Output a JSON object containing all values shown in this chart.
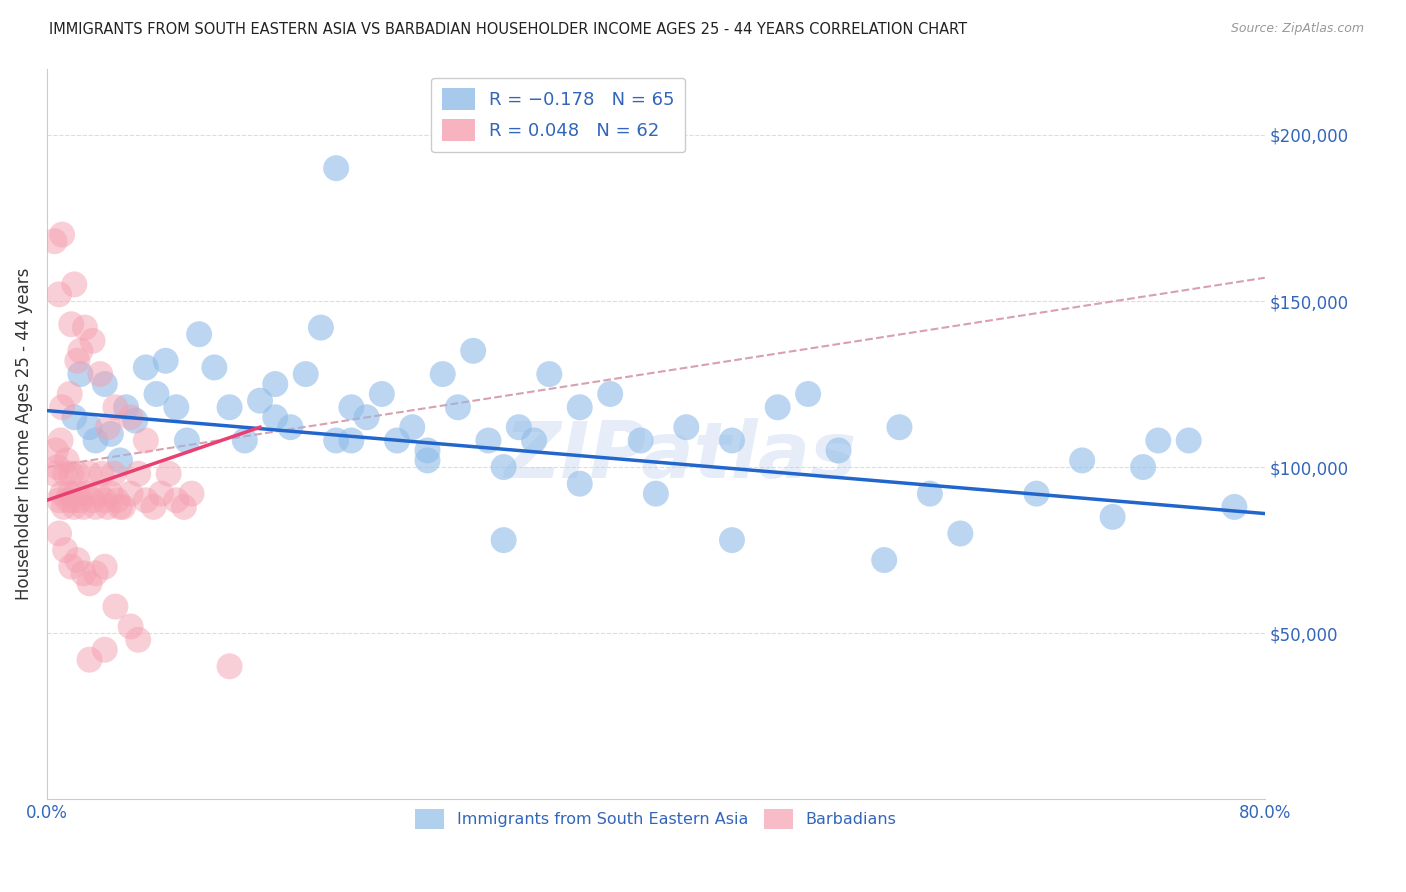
{
  "title": "IMMIGRANTS FROM SOUTH EASTERN ASIA VS BARBADIAN HOUSEHOLDER INCOME AGES 25 - 44 YEARS CORRELATION CHART",
  "source": "Source: ZipAtlas.com",
  "ylabel": "Householder Income Ages 25 - 44 years",
  "xlim": [
    0.0,
    0.8
  ],
  "ylim": [
    0,
    220000
  ],
  "yticks": [
    50000,
    100000,
    150000,
    200000
  ],
  "ytick_labels": [
    "$50,000",
    "$100,000",
    "$150,000",
    "$200,000"
  ],
  "xticks": [
    0.0,
    0.2,
    0.4,
    0.6,
    0.8
  ],
  "xtick_labels": [
    "0.0%",
    "",
    "",
    "",
    "80.0%"
  ],
  "blue_color": "#90bce8",
  "pink_color": "#f5a0b0",
  "blue_line_color": "#2266cc",
  "pink_line_color": "#e84070",
  "dashed_color": "#d8a0b0",
  "background_color": "#ffffff",
  "grid_color": "#dddddd",
  "title_color": "#222222",
  "axis_label_color": "#333333",
  "tick_color": "#3366bb",
  "watermark": "ZIPatlas",
  "blue_scatter_x": [
    0.018,
    0.022,
    0.028,
    0.032,
    0.038,
    0.042,
    0.048,
    0.052,
    0.058,
    0.065,
    0.072,
    0.078,
    0.085,
    0.092,
    0.1,
    0.11,
    0.12,
    0.13,
    0.14,
    0.15,
    0.16,
    0.17,
    0.18,
    0.19,
    0.2,
    0.21,
    0.22,
    0.23,
    0.24,
    0.25,
    0.27,
    0.29,
    0.31,
    0.33,
    0.35,
    0.37,
    0.39,
    0.42,
    0.45,
    0.48,
    0.52,
    0.56,
    0.6,
    0.65,
    0.72,
    0.75,
    0.78,
    0.19,
    0.26,
    0.3,
    0.28,
    0.32,
    0.5,
    0.58,
    0.68,
    0.73,
    0.7,
    0.15,
    0.2,
    0.25,
    0.3,
    0.35,
    0.4,
    0.45,
    0.55
  ],
  "blue_scatter_y": [
    115000,
    128000,
    112000,
    108000,
    125000,
    110000,
    102000,
    118000,
    114000,
    130000,
    122000,
    132000,
    118000,
    108000,
    140000,
    130000,
    118000,
    108000,
    120000,
    125000,
    112000,
    128000,
    142000,
    108000,
    118000,
    115000,
    122000,
    108000,
    112000,
    102000,
    118000,
    108000,
    112000,
    128000,
    118000,
    122000,
    108000,
    112000,
    108000,
    118000,
    105000,
    112000,
    80000,
    92000,
    100000,
    108000,
    88000,
    190000,
    128000,
    78000,
    135000,
    108000,
    122000,
    92000,
    102000,
    108000,
    85000,
    115000,
    108000,
    105000,
    100000,
    95000,
    92000,
    78000,
    72000
  ],
  "pink_scatter_x": [
    0.005,
    0.006,
    0.007,
    0.008,
    0.009,
    0.01,
    0.011,
    0.012,
    0.013,
    0.014,
    0.015,
    0.016,
    0.017,
    0.018,
    0.019,
    0.02,
    0.022,
    0.024,
    0.026,
    0.028,
    0.03,
    0.032,
    0.034,
    0.036,
    0.038,
    0.04,
    0.042,
    0.044,
    0.046,
    0.048,
    0.05,
    0.055,
    0.06,
    0.065,
    0.07,
    0.075,
    0.08,
    0.085,
    0.09,
    0.095,
    0.01,
    0.015,
    0.02,
    0.025,
    0.03,
    0.035,
    0.04,
    0.045,
    0.055,
    0.065,
    0.008,
    0.012,
    0.016,
    0.02,
    0.024,
    0.028,
    0.032,
    0.038,
    0.045,
    0.055,
    0.01,
    0.018
  ],
  "pink_scatter_y": [
    98000,
    105000,
    100000,
    90000,
    108000,
    92000,
    88000,
    98000,
    102000,
    90000,
    92000,
    98000,
    90000,
    88000,
    92000,
    98000,
    90000,
    88000,
    92000,
    98000,
    90000,
    88000,
    92000,
    98000,
    90000,
    88000,
    92000,
    98000,
    90000,
    88000,
    88000,
    92000,
    98000,
    90000,
    88000,
    92000,
    98000,
    90000,
    88000,
    92000,
    118000,
    122000,
    132000,
    142000,
    138000,
    128000,
    112000,
    118000,
    115000,
    108000,
    80000,
    75000,
    70000,
    72000,
    68000,
    65000,
    68000,
    70000,
    58000,
    52000,
    170000,
    155000
  ],
  "pink_scatter_x_extra": [
    0.005,
    0.008,
    0.016,
    0.022,
    0.028,
    0.038,
    0.06,
    0.12
  ],
  "pink_scatter_y_extra": [
    168000,
    152000,
    143000,
    135000,
    42000,
    45000,
    48000,
    40000
  ],
  "blue_trend_x": [
    0.0,
    0.8
  ],
  "blue_trend_y": [
    117000,
    86000
  ],
  "pink_trend_x": [
    0.0,
    0.14
  ],
  "pink_trend_y": [
    90000,
    112000
  ],
  "dashed_trend_x": [
    0.0,
    0.8
  ],
  "dashed_trend_y": [
    100000,
    157000
  ]
}
